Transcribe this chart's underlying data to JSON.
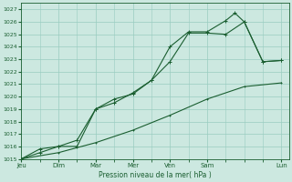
{
  "xlabel": "Pression niveau de la mer( hPa )",
  "bg_color": "#cce8e0",
  "grid_color": "#99ccc0",
  "line_color": "#1a5e30",
  "line_color2": "#336633",
  "ylim": [
    1015,
    1027.5
  ],
  "ytick_min": 1015,
  "ytick_max": 1027,
  "day_labels": [
    "Jeu",
    "Dim",
    "Mar",
    "",
    "Mer",
    "",
    "Ven",
    "",
    "Sam",
    "",
    "",
    "Lun"
  ],
  "day_positions": [
    0,
    1,
    2,
    2.5,
    3,
    3.5,
    4,
    4.5,
    5,
    5.5,
    6,
    7
  ],
  "xlim": [
    0,
    7.2
  ],
  "series1_x": [
    0,
    0.5,
    1.0,
    1.5,
    2.0,
    2.5,
    3.0,
    3.5,
    4.0,
    4.5,
    5.0,
    5.5,
    6.0,
    6.5,
    7.0
  ],
  "series1_y": [
    1015,
    1015.5,
    1016,
    1016,
    1019,
    1019.5,
    1020.3,
    1021.3,
    1022.8,
    1025.1,
    1025.1,
    1025.0,
    1026.0,
    1022.8,
    1022.9
  ],
  "series2_x": [
    0,
    1.0,
    2.0,
    3.0,
    4.0,
    5.0,
    6.0,
    7.0
  ],
  "series2_y": [
    1015,
    1015.5,
    1016.3,
    1017.3,
    1018.5,
    1019.8,
    1020.8,
    1021.1
  ],
  "series3_x": [
    0,
    0.5,
    1.0,
    1.5,
    2.0,
    2.5,
    3.0,
    3.5,
    4.0,
    4.5,
    5.0,
    5.5,
    5.75,
    6.0,
    6.5,
    7.0
  ],
  "series3_y": [
    1015,
    1015.8,
    1016.0,
    1016.5,
    1019.0,
    1019.8,
    1020.2,
    1021.3,
    1024.0,
    1025.2,
    1025.2,
    1026.1,
    1026.7,
    1026.0,
    1022.8,
    1022.9
  ]
}
